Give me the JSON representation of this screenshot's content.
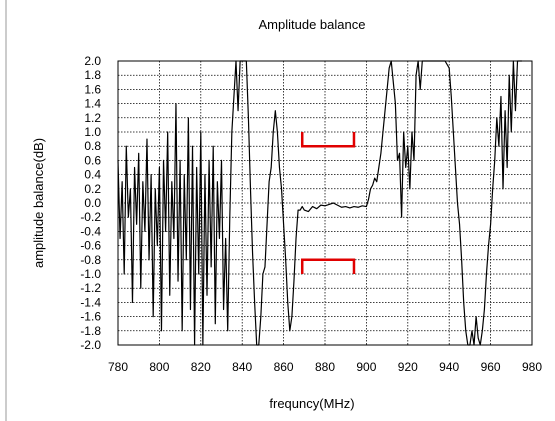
{
  "chart_data": {
    "type": "line",
    "title": "Amplitude balance",
    "xlabel": "frequncy(MHz)",
    "ylabel": "amplitude balance(dB)",
    "xlim": [
      780,
      980
    ],
    "ylim": [
      -2.0,
      2.0
    ],
    "grid": true,
    "x_ticks": [
      780,
      800,
      820,
      840,
      860,
      880,
      900,
      920,
      940,
      960,
      980
    ],
    "x_tick_labels": [
      "780",
      "800",
      "820",
      "840",
      "860",
      "880",
      "900",
      "920",
      "940",
      "960",
      "980"
    ],
    "y_ticks": [
      2.0,
      1.8,
      1.6,
      1.4,
      1.2,
      1.0,
      0.8,
      0.6,
      0.4,
      0.2,
      0.0,
      -0.2,
      -0.4,
      -0.6,
      -0.8,
      -1.0,
      -1.2,
      -1.4,
      -1.6,
      -1.8,
      -2.0
    ],
    "y_tick_labels": [
      "2.0",
      "1.8",
      "1.6",
      "1.4",
      "1.2",
      "1.0",
      "0.8",
      "0.6",
      "0.4",
      "0.2",
      "0.0",
      "-0.2",
      "-0.4",
      "-0.6",
      "-0.8",
      "-1.0",
      "-1.2",
      "-1.4",
      "-1.6",
      "-1.8",
      "-2.0"
    ],
    "series": [
      {
        "color": "#000000",
        "points": [
          [
            780,
            0.6
          ],
          [
            781,
            -0.5
          ],
          [
            782,
            0.3
          ],
          [
            783,
            -1.0
          ],
          [
            784,
            0.8
          ],
          [
            785,
            -0.2
          ],
          [
            786,
            0.2
          ],
          [
            787,
            -1.4
          ],
          [
            788,
            0.5
          ],
          [
            789,
            -0.3
          ],
          [
            790,
            0.7
          ],
          [
            791,
            -1.2
          ],
          [
            792,
            0.3
          ],
          [
            793,
            -0.4
          ],
          [
            794,
            0.9
          ],
          [
            795,
            -0.8
          ],
          [
            796,
            0.4
          ],
          [
            797,
            -1.6
          ],
          [
            798,
            0.2
          ],
          [
            799,
            -0.6
          ],
          [
            800,
            0.5
          ],
          [
            801,
            -1.8
          ],
          [
            802,
            0.6
          ],
          [
            803,
            -0.4
          ],
          [
            804,
            1.0
          ],
          [
            805,
            -1.3
          ],
          [
            806,
            0.3
          ],
          [
            807,
            -0.5
          ],
          [
            808,
            1.4
          ],
          [
            809,
            -1.1
          ],
          [
            810,
            0.6
          ],
          [
            811,
            -1.8
          ],
          [
            812,
            0.4
          ],
          [
            813,
            -0.8
          ],
          [
            814,
            1.2
          ],
          [
            815,
            -1.5
          ],
          [
            816,
            0.8
          ],
          [
            817,
            -2.0
          ],
          [
            818,
            0.5
          ],
          [
            819,
            -1.0
          ],
          [
            820,
            1.0
          ],
          [
            821,
            -2.0
          ],
          [
            822,
            0.4
          ],
          [
            823,
            -1.3
          ],
          [
            824,
            0.6
          ],
          [
            825,
            -0.9
          ],
          [
            826,
            0.8
          ],
          [
            827,
            -1.7
          ],
          [
            828,
            0.3
          ],
          [
            829,
            -0.5
          ],
          [
            830,
            0.6
          ],
          [
            831,
            -1.5
          ],
          [
            832,
            -0.5
          ],
          [
            833,
            -1.8
          ],
          [
            834,
            -0.2
          ],
          [
            835,
            1.0
          ],
          [
            836,
            1.5
          ],
          [
            837,
            2.0
          ],
          [
            838,
            1.3
          ],
          [
            839,
            2.0
          ],
          [
            840,
            2.0
          ],
          [
            841,
            2.0
          ],
          [
            842,
            2.0
          ],
          [
            843,
            1.2
          ],
          [
            844,
            0.2
          ],
          [
            845,
            -0.7
          ],
          [
            846,
            -1.4
          ],
          [
            847,
            -2.0
          ],
          [
            848,
            -2.0
          ],
          [
            849,
            -1.6
          ],
          [
            850,
            -1.0
          ],
          [
            851,
            -0.9
          ],
          [
            852,
            -0.3
          ],
          [
            853,
            0.3
          ],
          [
            854,
            0.5
          ],
          [
            855,
            1.0
          ],
          [
            856,
            1.3
          ],
          [
            857,
            1.0
          ],
          [
            858,
            0.5
          ],
          [
            859,
            0.2
          ],
          [
            860,
            -0.3
          ],
          [
            861,
            -0.8
          ],
          [
            862,
            -1.4
          ],
          [
            863,
            -1.8
          ],
          [
            864,
            -1.6
          ],
          [
            865,
            -1.1
          ],
          [
            866,
            -0.5
          ],
          [
            867,
            -0.1
          ],
          [
            868,
            -0.1
          ],
          [
            869,
            -0.05
          ],
          [
            870,
            -0.1
          ],
          [
            872,
            -0.12
          ],
          [
            874,
            -0.05
          ],
          [
            876,
            -0.08
          ],
          [
            878,
            -0.03
          ],
          [
            880,
            -0.04
          ],
          [
            882,
            -0.02
          ],
          [
            884,
            0.0
          ],
          [
            886,
            -0.03
          ],
          [
            888,
            -0.06
          ],
          [
            890,
            -0.05
          ],
          [
            892,
            -0.07
          ],
          [
            894,
            -0.05
          ],
          [
            896,
            -0.06
          ],
          [
            898,
            -0.04
          ],
          [
            900,
            -0.05
          ],
          [
            901,
            0.05
          ],
          [
            902,
            0.2
          ],
          [
            903,
            0.25
          ],
          [
            904,
            0.35
          ],
          [
            905,
            0.3
          ],
          [
            906,
            0.5
          ],
          [
            907,
            0.7
          ],
          [
            908,
            1.0
          ],
          [
            909,
            1.3
          ],
          [
            910,
            1.6
          ],
          [
            911,
            1.9
          ],
          [
            912,
            2.0
          ],
          [
            913,
            1.7
          ],
          [
            914,
            1.4
          ],
          [
            915,
            0.6
          ],
          [
            916,
            0.7
          ],
          [
            917,
            -0.2
          ],
          [
            918,
            1.0
          ],
          [
            919,
            0.5
          ],
          [
            920,
            0.8
          ],
          [
            921,
            0.2
          ],
          [
            922,
            1.0
          ],
          [
            923,
            0.6
          ],
          [
            924,
            1.8
          ],
          [
            925,
            2.0
          ],
          [
            926,
            1.6
          ],
          [
            927,
            2.0
          ],
          [
            928,
            2.0
          ],
          [
            930,
            2.0
          ],
          [
            932,
            2.0
          ],
          [
            934,
            2.0
          ],
          [
            936,
            2.0
          ],
          [
            938,
            2.0
          ],
          [
            940,
            1.9
          ],
          [
            941,
            1.5
          ],
          [
            942,
            1.0
          ],
          [
            943,
            0.5
          ],
          [
            944,
            0.0
          ],
          [
            945,
            -0.3
          ],
          [
            946,
            -0.8
          ],
          [
            947,
            -1.4
          ],
          [
            948,
            -1.8
          ],
          [
            949,
            -2.0
          ],
          [
            950,
            -2.0
          ],
          [
            951,
            -1.8
          ],
          [
            952,
            -2.0
          ],
          [
            953,
            -1.6
          ],
          [
            954,
            -1.9
          ],
          [
            955,
            -2.0
          ],
          [
            956,
            -1.8
          ],
          [
            957,
            -1.5
          ],
          [
            958,
            -1.0
          ],
          [
            959,
            -0.6
          ],
          [
            960,
            -0.3
          ],
          [
            961,
            0.2
          ],
          [
            962,
            0.6
          ],
          [
            963,
            1.2
          ],
          [
            964,
            0.8
          ],
          [
            965,
            1.5
          ],
          [
            966,
            0.2
          ],
          [
            967,
            1.3
          ],
          [
            968,
            0.5
          ],
          [
            969,
            1.8
          ],
          [
            970,
            1.0
          ],
          [
            971,
            2.0
          ],
          [
            972,
            1.3
          ],
          [
            973,
            2.0
          ],
          [
            974,
            2.0
          ],
          [
            975,
            2.0
          ]
        ]
      }
    ],
    "annotations": [
      {
        "type": "spec_bracket",
        "color": "#e00000",
        "x_start": 869,
        "x_end": 894,
        "y": 0.8,
        "y_tip": 1.0
      },
      {
        "type": "spec_bracket",
        "color": "#e00000",
        "x_start": 869,
        "x_end": 894,
        "y": -0.8,
        "y_tip": -1.0
      }
    ]
  }
}
